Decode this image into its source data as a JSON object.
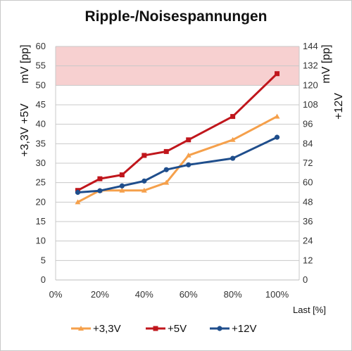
{
  "chart_data": {
    "type": "line",
    "title": "Ripple-/Noisespannungen",
    "ylabel_left_top": "mV [pp]",
    "ylabel_left_bottom": "+3,3V +5V",
    "ylabel_right_top": "mV [pp]",
    "ylabel_right_bottom": "+12V",
    "xlabel": "Last [%]",
    "x_ticks": [
      "0%",
      "20%",
      "40%",
      "60%",
      "80%",
      "100%"
    ],
    "xlim": [
      0,
      110
    ],
    "ylim_left": [
      0,
      60
    ],
    "ylim_right": [
      0,
      144
    ],
    "y_ticks_left": [
      "0",
      "5",
      "10",
      "15",
      "20",
      "25",
      "30",
      "35",
      "40",
      "45",
      "50",
      "55",
      "60"
    ],
    "y_ticks_right": [
      "0",
      "12",
      "24",
      "36",
      "48",
      "60",
      "72",
      "84",
      "96",
      "108",
      "120",
      "132",
      "144"
    ],
    "highlight_band_left": [
      50,
      60
    ],
    "grid": "horizontal",
    "legend_position": "bottom",
    "x": [
      10,
      20,
      30,
      40,
      50,
      60,
      80,
      100
    ],
    "series": [
      {
        "name": "+3,3V",
        "axis": "left",
        "color": "#f5a04b",
        "marker": "triangle",
        "values": [
          20,
          23,
          23,
          23,
          25,
          32,
          36,
          42
        ]
      },
      {
        "name": "+5V",
        "axis": "left",
        "color": "#c0161c",
        "marker": "square",
        "values": [
          23,
          26,
          27,
          32,
          33,
          36,
          42,
          53
        ]
      },
      {
        "name": "+12V",
        "axis": "right",
        "color": "#1f4e8c",
        "marker": "circle",
        "values": [
          54,
          55,
          58,
          61,
          68,
          71,
          75,
          88
        ]
      }
    ],
    "band_color": "#f7d0d0"
  }
}
